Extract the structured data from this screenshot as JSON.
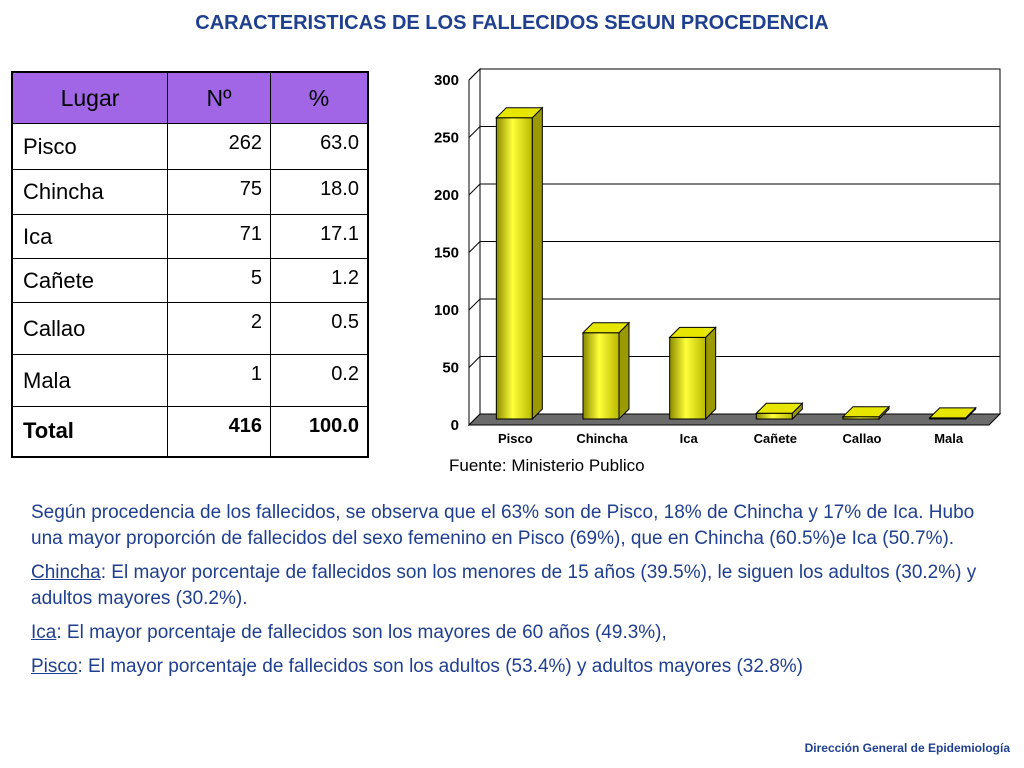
{
  "title": "CARACTERISTICAS DE LOS FALLECIDOS SEGUN PROCEDENCIA",
  "table": {
    "headers": [
      "Lugar",
      "Nº",
      "%"
    ],
    "rows": [
      {
        "lugar": "Pisco",
        "n": "262",
        "pct": "63.0"
      },
      {
        "lugar": "Chincha",
        "n": "75",
        "pct": "18.0"
      },
      {
        "lugar": "Ica",
        "n": "71",
        "pct": "17.1"
      },
      {
        "lugar": "Cañete",
        "n": "5",
        "pct": "1.2"
      },
      {
        "lugar": "Callao",
        "n": "2",
        "pct": "0.5"
      },
      {
        "lugar": "Mala",
        "n": "1",
        "pct": "0.2"
      }
    ],
    "total": {
      "lugar": "Total",
      "n": "416",
      "pct": "100.0"
    },
    "header_color": "#a066e6"
  },
  "chart_data": {
    "type": "bar",
    "categories": [
      "Pisco",
      "Chincha",
      "Ica",
      "Cañete",
      "Callao",
      "Mala"
    ],
    "values": [
      262,
      75,
      71,
      5,
      2,
      1
    ],
    "title": "",
    "xlabel": "",
    "ylabel": "",
    "ylim": [
      0,
      300
    ],
    "yticks": [
      0,
      50,
      100,
      150,
      200,
      250,
      300
    ],
    "grid": true,
    "style": "3d",
    "bar_color": "#ffff00"
  },
  "source": "Fuente: Ministerio Publico",
  "paragraphs": [
    {
      "label": "",
      "text": "Según procedencia de los fallecidos, se observa que el 63% son de Pisco, 18% de Chincha y 17% de Ica. Hubo una mayor proporción de fallecidos del sexo femenino en Pisco (69%), que en Chincha (60.5%)e Ica (50.7%)."
    },
    {
      "label": "Chincha",
      "text": ": El mayor porcentaje de fallecidos son los menores de 15 años (39.5%), le siguen los adultos (30.2%) y adultos mayores (30.2%)."
    },
    {
      "label": "Ica",
      "text": ": El mayor porcentaje de fallecidos son los mayores de 60 años (49.3%),"
    },
    {
      "label": "Pisco",
      "text": ": El mayor porcentaje de fallecidos son los adultos (53.4%) y adultos mayores (32.8%)"
    }
  ],
  "footer": "Dirección General de Epidemiología"
}
